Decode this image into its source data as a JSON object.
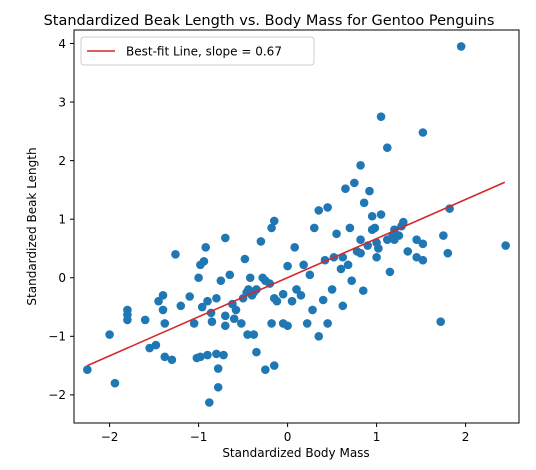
{
  "chart_data": {
    "type": "scatter",
    "title": "Standardized Beak Length vs. Body Mass for Gentoo Penguins",
    "xlabel": "Standardized Body Mass",
    "ylabel": "Standardized Beak Length",
    "xlim": [
      -2.4,
      2.6
    ],
    "ylim": [
      -2.48,
      4.23
    ],
    "xticks": [
      -2,
      -1,
      0,
      1,
      2
    ],
    "yticks": [
      -2,
      -1,
      0,
      1,
      2,
      3,
      4
    ],
    "xtick_labels": [
      "−2",
      "−1",
      "0",
      "1",
      "2"
    ],
    "ytick_labels": [
      "−2",
      "−1",
      "0",
      "1",
      "2",
      "3",
      "4"
    ],
    "grid": false,
    "legend_position": "top-left",
    "legend_label": "Best-fit Line, slope = 0.67",
    "colors": {
      "points": "#1f77b4",
      "line": "#d62728"
    },
    "fit_line": {
      "slope": 0.67,
      "x": [
        -2.25,
        2.44
      ],
      "y": [
        -1.5,
        1.63
      ]
    },
    "points": [
      [
        -2.25,
        -1.57
      ],
      [
        -2.0,
        -0.97
      ],
      [
        -1.94,
        -1.8
      ],
      [
        -1.8,
        -0.55
      ],
      [
        -1.8,
        -0.63
      ],
      [
        -1.8,
        -0.72
      ],
      [
        -1.6,
        -0.72
      ],
      [
        -1.55,
        -1.2
      ],
      [
        -1.48,
        -1.15
      ],
      [
        -1.45,
        -0.4
      ],
      [
        -1.4,
        -0.3
      ],
      [
        -1.4,
        -0.55
      ],
      [
        -1.38,
        -0.78
      ],
      [
        -1.38,
        -1.35
      ],
      [
        -1.3,
        -1.4
      ],
      [
        -1.26,
        0.4
      ],
      [
        -1.2,
        -0.48
      ],
      [
        -1.1,
        -0.32
      ],
      [
        -1.05,
        -0.78
      ],
      [
        -1.02,
        -1.37
      ],
      [
        -1.0,
        0.0
      ],
      [
        -0.98,
        0.22
      ],
      [
        -0.98,
        -1.35
      ],
      [
        -0.96,
        -0.5
      ],
      [
        -0.94,
        0.28
      ],
      [
        -0.92,
        0.52
      ],
      [
        -0.9,
        -0.4
      ],
      [
        -0.9,
        -1.32
      ],
      [
        -0.88,
        -2.13
      ],
      [
        -0.86,
        -0.6
      ],
      [
        -0.85,
        -0.75
      ],
      [
        -0.8,
        -0.35
      ],
      [
        -0.8,
        -1.3
      ],
      [
        -0.78,
        -1.55
      ],
      [
        -0.78,
        -1.87
      ],
      [
        -0.75,
        -0.05
      ],
      [
        -0.72,
        -1.32
      ],
      [
        -0.7,
        0.68
      ],
      [
        -0.7,
        -0.65
      ],
      [
        -0.7,
        -0.82
      ],
      [
        -0.65,
        0.05
      ],
      [
        -0.62,
        -0.45
      ],
      [
        -0.6,
        -0.7
      ],
      [
        -0.58,
        -0.55
      ],
      [
        -0.52,
        -0.78
      ],
      [
        -0.5,
        -0.35
      ],
      [
        -0.48,
        0.32
      ],
      [
        -0.46,
        -0.25
      ],
      [
        -0.45,
        -0.97
      ],
      [
        -0.44,
        -0.2
      ],
      [
        -0.42,
        0.0
      ],
      [
        -0.4,
        -0.3
      ],
      [
        -0.38,
        -0.97
      ],
      [
        -0.38,
        -0.25
      ],
      [
        -0.35,
        -0.2
      ],
      [
        -0.35,
        -1.27
      ],
      [
        -0.3,
        0.62
      ],
      [
        -0.28,
        0.0
      ],
      [
        -0.25,
        -0.05
      ],
      [
        -0.25,
        -1.57
      ],
      [
        -0.2,
        -0.1
      ],
      [
        -0.18,
        -0.78
      ],
      [
        -0.18,
        0.85
      ],
      [
        -0.15,
        -0.35
      ],
      [
        -0.15,
        0.97
      ],
      [
        -0.15,
        -1.5
      ],
      [
        -0.12,
        -0.4
      ],
      [
        -0.05,
        -0.78
      ],
      [
        -0.05,
        -0.28
      ],
      [
        0.0,
        -0.82
      ],
      [
        0.0,
        0.2
      ],
      [
        0.05,
        -0.4
      ],
      [
        0.08,
        0.52
      ],
      [
        0.1,
        -0.2
      ],
      [
        0.15,
        -0.3
      ],
      [
        0.18,
        0.22
      ],
      [
        0.22,
        -0.78
      ],
      [
        0.25,
        0.05
      ],
      [
        0.28,
        -0.55
      ],
      [
        0.3,
        0.85
      ],
      [
        0.35,
        1.15
      ],
      [
        0.35,
        -1.0
      ],
      [
        0.4,
        -0.38
      ],
      [
        0.42,
        0.3
      ],
      [
        0.45,
        -0.78
      ],
      [
        0.45,
        1.2
      ],
      [
        0.5,
        -0.2
      ],
      [
        0.52,
        0.35
      ],
      [
        0.55,
        0.75
      ],
      [
        0.6,
        0.15
      ],
      [
        0.62,
        0.35
      ],
      [
        0.62,
        -0.48
      ],
      [
        0.65,
        1.52
      ],
      [
        0.68,
        0.22
      ],
      [
        0.7,
        0.85
      ],
      [
        0.72,
        -0.05
      ],
      [
        0.75,
        1.62
      ],
      [
        0.78,
        0.45
      ],
      [
        0.82,
        1.92
      ],
      [
        0.82,
        0.65
      ],
      [
        0.82,
        0.42
      ],
      [
        0.85,
        -0.22
      ],
      [
        0.86,
        1.28
      ],
      [
        0.9,
        0.55
      ],
      [
        0.92,
        1.48
      ],
      [
        0.95,
        1.05
      ],
      [
        0.95,
        0.82
      ],
      [
        0.98,
        0.85
      ],
      [
        1.0,
        0.35
      ],
      [
        1.0,
        0.6
      ],
      [
        1.02,
        0.5
      ],
      [
        1.05,
        1.08
      ],
      [
        1.05,
        2.75
      ],
      [
        1.12,
        2.22
      ],
      [
        1.12,
        0.65
      ],
      [
        1.15,
        0.1
      ],
      [
        1.18,
        0.72
      ],
      [
        1.2,
        0.65
      ],
      [
        1.2,
        0.82
      ],
      [
        1.25,
        0.72
      ],
      [
        1.28,
        0.88
      ],
      [
        1.3,
        0.95
      ],
      [
        1.35,
        0.45
      ],
      [
        1.45,
        0.65
      ],
      [
        1.45,
        0.35
      ],
      [
        1.52,
        2.48
      ],
      [
        1.52,
        0.58
      ],
      [
        1.52,
        0.3
      ],
      [
        1.72,
        -0.75
      ],
      [
        1.75,
        0.72
      ],
      [
        1.8,
        0.42
      ],
      [
        1.82,
        1.18
      ],
      [
        1.95,
        3.95
      ],
      [
        2.45,
        0.55
      ]
    ]
  }
}
